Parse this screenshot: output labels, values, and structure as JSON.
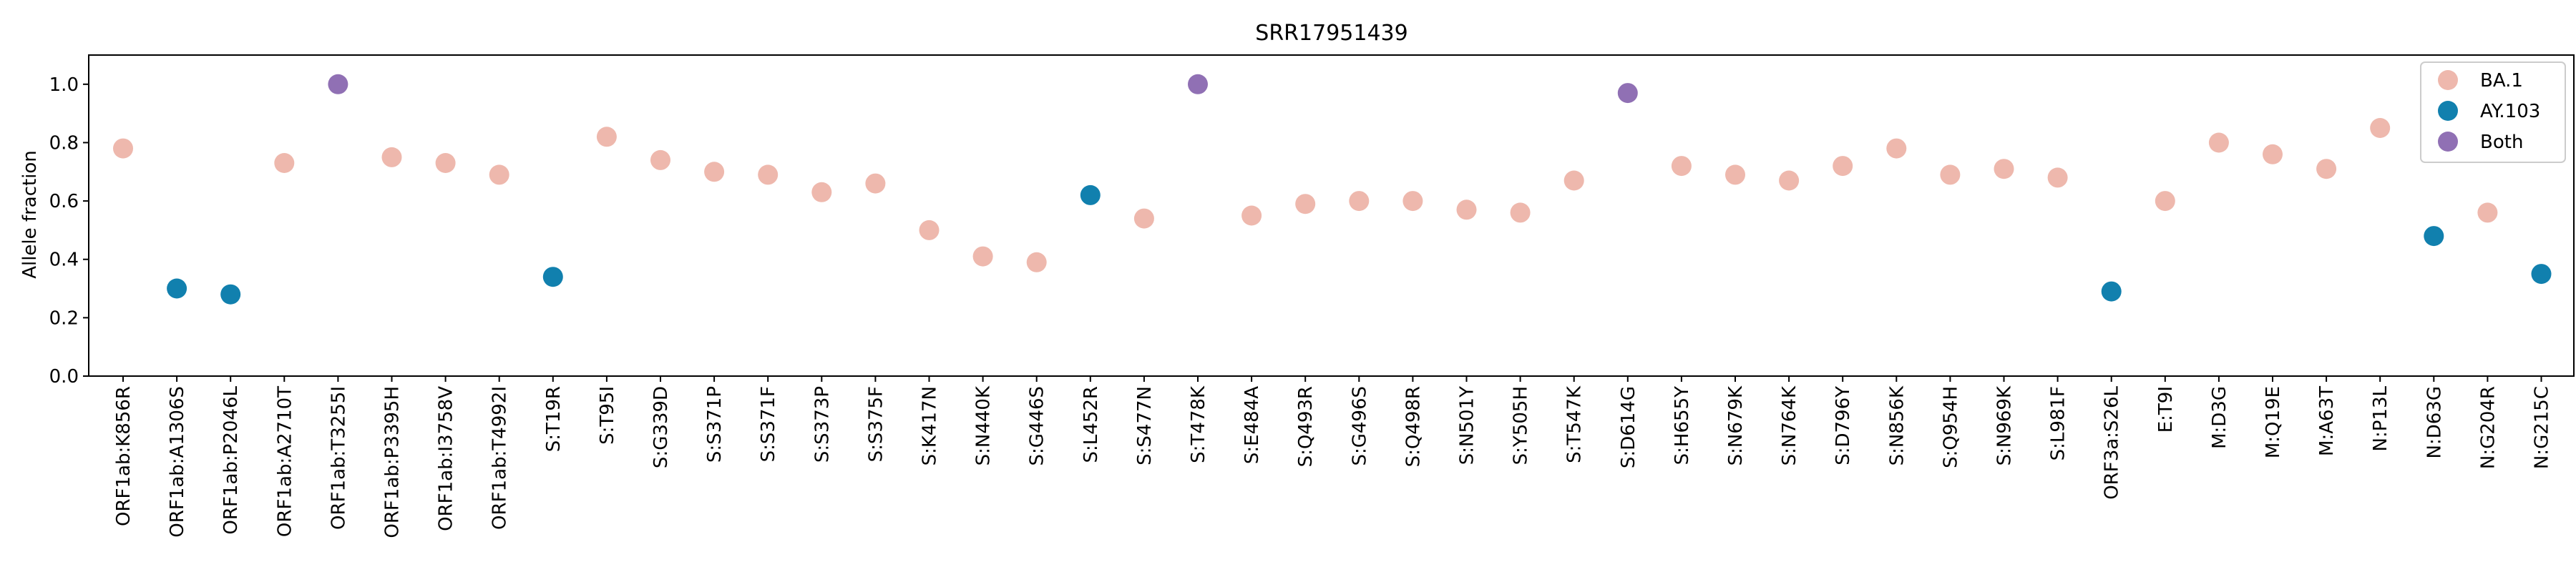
{
  "chart_data": {
    "type": "scatter",
    "title": "SRR17951439",
    "xlabel": "",
    "ylabel": "Allele fraction",
    "ylim": [
      0,
      1.1
    ],
    "yticks": [
      "0.0",
      "0.2",
      "0.4",
      "0.6",
      "0.8",
      "1.0"
    ],
    "grid": false,
    "legend_position": "top-right",
    "legend": [
      {
        "label": "BA.1",
        "color": "#eeb8ad"
      },
      {
        "label": "AY.103",
        "color": "#1180ae"
      },
      {
        "label": "Both",
        "color": "#9070b4"
      }
    ],
    "categories": [
      "ORF1ab:K856R",
      "ORF1ab:A1306S",
      "ORF1ab:P2046L",
      "ORF1ab:A2710T",
      "ORF1ab:T3255I",
      "ORF1ab:P3395H",
      "ORF1ab:I3758V",
      "ORF1ab:T4992I",
      "S:T19R",
      "S:T95I",
      "S:G339D",
      "S:S371P",
      "S:S371F",
      "S:S373P",
      "S:S375F",
      "S:K417N",
      "S:N440K",
      "S:G446S",
      "S:L452R",
      "S:S477N",
      "S:T478K",
      "S:E484A",
      "S:Q493R",
      "S:G496S",
      "S:Q498R",
      "S:N501Y",
      "S:Y505H",
      "S:T547K",
      "S:D614G",
      "S:H655Y",
      "S:N679K",
      "S:N764K",
      "S:D796Y",
      "S:N856K",
      "S:Q954H",
      "S:N969K",
      "S:L981F",
      "ORF3a:S26L",
      "E:T9I",
      "M:D3G",
      "M:Q19E",
      "M:A63T",
      "N:P13L",
      "N:D63G",
      "N:G204R",
      "N:G215C"
    ],
    "values": [
      0.78,
      0.3,
      0.28,
      0.73,
      1.0,
      0.75,
      0.73,
      0.69,
      0.34,
      0.82,
      0.74,
      0.7,
      0.69,
      0.63,
      0.66,
      0.5,
      0.41,
      0.39,
      0.62,
      0.54,
      1.0,
      0.55,
      0.59,
      0.6,
      0.6,
      0.57,
      0.56,
      0.67,
      0.97,
      0.72,
      0.69,
      0.67,
      0.72,
      0.78,
      0.69,
      0.71,
      0.68,
      0.29,
      0.6,
      0.8,
      0.76,
      0.71,
      0.85,
      0.48,
      0.56,
      0.35
    ],
    "groups": [
      "BA.1",
      "AY.103",
      "AY.103",
      "BA.1",
      "Both",
      "BA.1",
      "BA.1",
      "BA.1",
      "AY.103",
      "BA.1",
      "BA.1",
      "BA.1",
      "BA.1",
      "BA.1",
      "BA.1",
      "BA.1",
      "BA.1",
      "BA.1",
      "AY.103",
      "BA.1",
      "Both",
      "BA.1",
      "BA.1",
      "BA.1",
      "BA.1",
      "BA.1",
      "BA.1",
      "BA.1",
      "Both",
      "BA.1",
      "BA.1",
      "BA.1",
      "BA.1",
      "BA.1",
      "BA.1",
      "BA.1",
      "BA.1",
      "AY.103",
      "BA.1",
      "BA.1",
      "BA.1",
      "BA.1",
      "BA.1",
      "AY.103",
      "BA.1",
      "AY.103"
    ]
  }
}
